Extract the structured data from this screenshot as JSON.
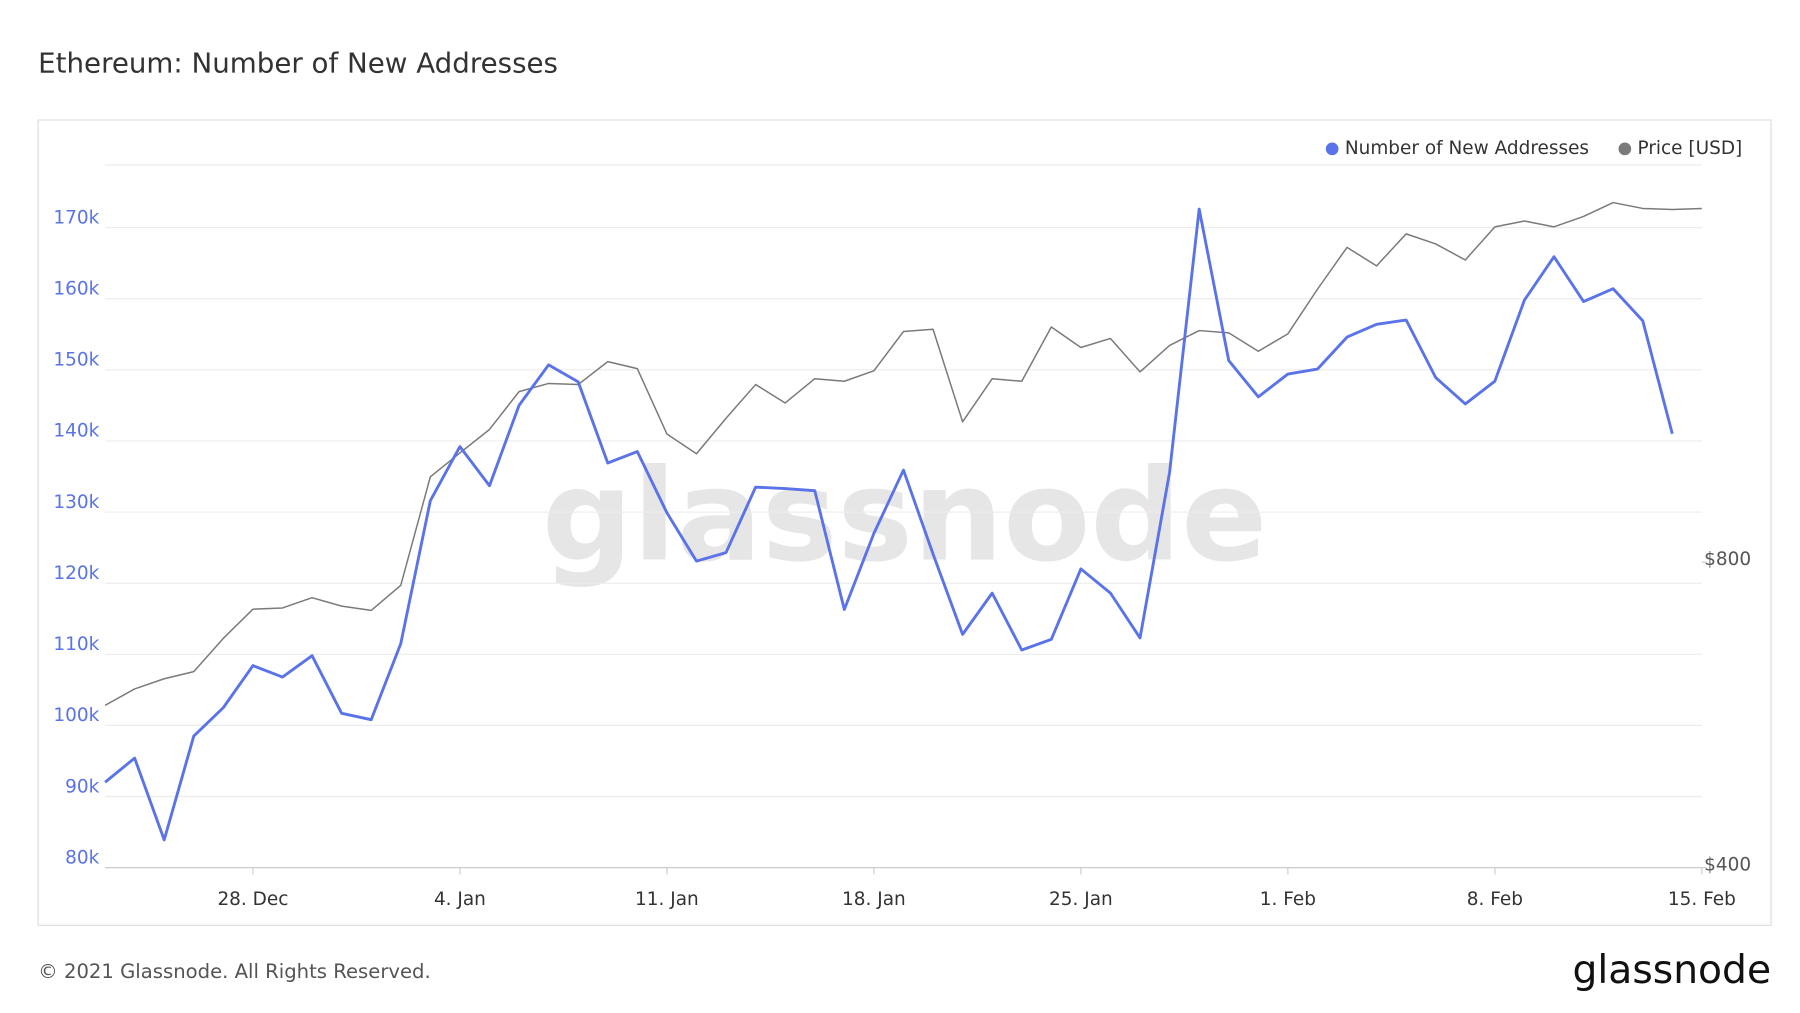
{
  "chart_data": {
    "type": "line",
    "title": "Ethereum: Number of New Addresses",
    "watermark": "glassnode",
    "footer": "© 2021 Glassnode. All Rights Reserved.",
    "logo": "glassnode",
    "legend": "top-right",
    "grid": true,
    "x": [
      "23. Dec",
      "24. Dec",
      "25. Dec",
      "26. Dec",
      "27. Dec",
      "28. Dec",
      "29. Dec",
      "30. Dec",
      "31. Dec",
      "1. Jan",
      "2. Jan",
      "3. Jan",
      "4. Jan",
      "5. Jan",
      "6. Jan",
      "7. Jan",
      "8. Jan",
      "9. Jan",
      "10. Jan",
      "11. Jan",
      "12. Jan",
      "13. Jan",
      "14. Jan",
      "15. Jan",
      "16. Jan",
      "17. Jan",
      "18. Jan",
      "19. Jan",
      "20. Jan",
      "21. Jan",
      "22. Jan",
      "23. Jan",
      "24. Jan",
      "25. Jan",
      "26. Jan",
      "27. Jan",
      "28. Jan",
      "29. Jan",
      "30. Jan",
      "31. Jan",
      "1. Feb",
      "2. Feb",
      "3. Feb",
      "4. Feb",
      "5. Feb",
      "6. Feb",
      "7. Feb",
      "8. Feb",
      "9. Feb",
      "10. Feb",
      "11. Feb",
      "12. Feb",
      "13. Feb",
      "14. Feb",
      "15. Feb"
    ],
    "xticks": [
      "28. Dec",
      "4. Jan",
      "11. Jan",
      "18. Jan",
      "25. Jan",
      "1. Feb",
      "8. Feb",
      "15. Feb"
    ],
    "ylim": [
      80000,
      178800
    ],
    "yticks": [
      {
        "value": 80000,
        "label": "80k"
      },
      {
        "value": 90000,
        "label": "90k"
      },
      {
        "value": 100000,
        "label": "100k"
      },
      {
        "value": 110000,
        "label": "110k"
      },
      {
        "value": 120000,
        "label": "120k"
      },
      {
        "value": 130000,
        "label": "130k"
      },
      {
        "value": 140000,
        "label": "140k"
      },
      {
        "value": 150000,
        "label": "150k"
      },
      {
        "value": 160000,
        "label": "160k"
      },
      {
        "value": 170000,
        "label": "170k"
      }
    ],
    "y2lim": [
      400,
      1970
    ],
    "y2log": true,
    "y2ticks": [
      {
        "value": 400,
        "label": "$400"
      },
      {
        "value": 800,
        "label": "$800"
      }
    ],
    "series": [
      {
        "name": "Number of New Addresses",
        "color": "#5b73e8",
        "values": [
          92000,
          95400,
          83900,
          98500,
          102500,
          108400,
          106800,
          109800,
          101700,
          100800,
          111500,
          131600,
          139200,
          133700,
          145000,
          150700,
          148300,
          136900,
          138500,
          129900,
          123100,
          124300,
          133500,
          133300,
          133000,
          116300,
          127000,
          135900,
          124100,
          112800,
          118600,
          110600,
          112100,
          122000,
          118600,
          112300,
          135600,
          172600,
          151300,
          146200,
          149400,
          150100,
          154600,
          156400,
          157000,
          148900,
          145200,
          148400,
          159800,
          165900,
          159600,
          161400,
          156900,
          141000,
          null
        ]
      },
      {
        "name": "Price [USD]",
        "color": "#7a7a7a",
        "axis": "y2",
        "values": [
          578,
          600,
          614,
          624,
          673,
          719,
          721,
          738,
          724,
          717,
          759,
          971,
          1025,
          1081,
          1178,
          1200,
          1197,
          1261,
          1241,
          1070,
          1023,
          1109,
          1197,
          1148,
          1213,
          1206,
          1235,
          1350,
          1357,
          1100,
          1213,
          1206,
          1364,
          1302,
          1329,
          1232,
          1308,
          1353,
          1346,
          1291,
          1343,
          1486,
          1634,
          1567,
          1685,
          1647,
          1588,
          1712,
          1735,
          1712,
          1753,
          1809,
          1785,
          1781,
          1785
        ]
      }
    ]
  }
}
